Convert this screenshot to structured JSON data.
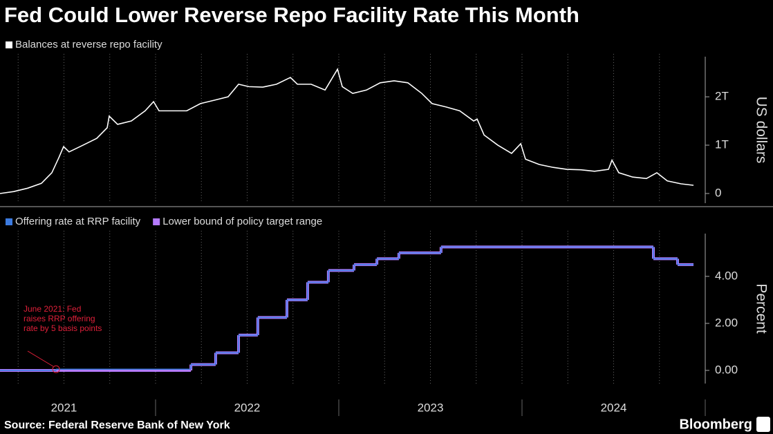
{
  "chart_data": [
    {
      "type": "line",
      "title": "Fed Could Lower Reverse Repo Facility Rate This Month",
      "ylabel": "US dollars",
      "xlim": [
        2021.151,
        2025.0
      ],
      "xgrid": [
        2021.25,
        2021.5,
        2021.75,
        2022,
        2022.25,
        2022.5,
        2022.75,
        2023,
        2023.25,
        2023.5,
        2023.75,
        2024,
        2024.25,
        2024.5,
        2024.75
      ],
      "ylim": [
        -200000000000.0,
        2830000000000.0
      ],
      "yticks": [
        0,
        {
          "value": 1000000000000.0,
          "label": "1T"
        },
        {
          "value": 2000000000000.0,
          "label": "2T"
        }
      ],
      "series": [
        {
          "name": "Balances at reverse repo facility",
          "color": "#ffffff",
          "x": [
            2021.151,
            2021.226,
            2021.302,
            2021.377,
            2021.434,
            2021.472,
            2021.498,
            2021.528,
            2021.604,
            2021.679,
            2021.736,
            2021.747,
            2021.793,
            2021.868,
            2021.943,
            2021.989,
            2022.019,
            2022.094,
            2022.17,
            2022.245,
            2022.321,
            2022.396,
            2022.453,
            2022.509,
            2022.585,
            2022.66,
            2022.736,
            2022.774,
            2022.849,
            2022.925,
            2022.993,
            2023.019,
            2023.076,
            2023.151,
            2023.226,
            2023.302,
            2023.377,
            2023.453,
            2023.509,
            2023.585,
            2023.66,
            2023.736,
            2023.755,
            2023.793,
            2023.868,
            2023.943,
            2023.993,
            2024.019,
            2024.094,
            2024.17,
            2024.245,
            2024.321,
            2024.396,
            2024.472,
            2024.491,
            2024.528,
            2024.604,
            2024.679,
            2024.736,
            2024.793,
            2024.868,
            2024.936
          ],
          "values": [
            0,
            40000000000.0,
            110000000000.0,
            210000000000.0,
            430000000000.0,
            740000000000.0,
            970000000000.0,
            860000000000.0,
            1000000000000.0,
            1140000000000.0,
            1360000000000.0,
            1600000000000.0,
            1430000000000.0,
            1500000000000.0,
            1710000000000.0,
            1900000000000.0,
            1710000000000.0,
            1710000000000.0,
            1710000000000.0,
            1860000000000.0,
            1930000000000.0,
            2000000000000.0,
            2260000000000.0,
            2210000000000.0,
            2200000000000.0,
            2260000000000.0,
            2400000000000.0,
            2260000000000.0,
            2260000000000.0,
            2140000000000.0,
            2570000000000.0,
            2210000000000.0,
            2070000000000.0,
            2140000000000.0,
            2290000000000.0,
            2330000000000.0,
            2290000000000.0,
            2070000000000.0,
            1860000000000.0,
            1790000000000.0,
            1710000000000.0,
            1500000000000.0,
            1540000000000.0,
            1210000000000.0,
            1000000000000.0,
            830000000000.0,
            1030000000000.0,
            710000000000.0,
            600000000000.0,
            540000000000.0,
            500000000000.0,
            490000000000.0,
            460000000000.0,
            500000000000.0,
            690000000000.0,
            430000000000.0,
            340000000000.0,
            310000000000.0,
            430000000000.0,
            260000000000.0,
            200000000000.0,
            170000000000.0
          ]
        }
      ]
    },
    {
      "type": "step",
      "ylabel": "Percent",
      "xlim": [
        2021.151,
        2025.0
      ],
      "xgrid": [
        2021.25,
        2021.5,
        2021.75,
        2022,
        2022.25,
        2022.5,
        2022.75,
        2023,
        2023.25,
        2023.5,
        2023.75,
        2024,
        2024.25,
        2024.5,
        2024.75
      ],
      "xticks": [
        {
          "value": 2021.5,
          "label": "2021"
        },
        {
          "value": 2022.5,
          "label": "2022"
        },
        {
          "value": 2023.5,
          "label": "2023"
        },
        {
          "value": 2024.5,
          "label": "2024"
        }
      ],
      "ylim": [
        -0.56,
        5.82
      ],
      "yticks": [
        {
          "value": 0,
          "label": "0.00"
        },
        {
          "value": 2,
          "label": "2.00"
        },
        {
          "value": 4,
          "label": "4.00"
        }
      ],
      "series": [
        {
          "name": "Lower bound of policy target range",
          "color": "#b57bff",
          "x": [
            2021.151,
            2022.193,
            2022.328,
            2022.453,
            2022.558,
            2022.717,
            2022.83,
            2022.943,
            2023.083,
            2023.208,
            2023.328,
            2023.558,
            2024.717,
            2024.849,
            2024.936
          ],
          "values": [
            0,
            0.25,
            0.75,
            1.5,
            2.25,
            3.0,
            3.75,
            4.25,
            4.5,
            4.75,
            5.0,
            5.25,
            4.75,
            4.5,
            4.5
          ]
        },
        {
          "name": "Offering rate at RRP facility",
          "color": "#3c7be0",
          "x": [
            2021.151,
            2021.457,
            2022.193,
            2022.328,
            2022.453,
            2022.558,
            2022.717,
            2022.83,
            2022.943,
            2023.083,
            2023.208,
            2023.328,
            2023.558,
            2024.717,
            2024.849,
            2024.936
          ],
          "values": [
            0,
            0.05,
            0.25,
            0.75,
            1.5,
            2.25,
            3.0,
            3.75,
            4.25,
            4.5,
            4.75,
            5.0,
            5.25,
            4.75,
            4.5,
            4.5
          ]
        }
      ],
      "annotation": {
        "text": [
          "June 2021: Fed",
          "raises RRP offering",
          "rate by 5 basis points"
        ],
        "x": 2021.457,
        "y": 0.05,
        "color": "#e0203a"
      },
      "source": "Source: Federal Reserve Bank of New York",
      "brand": "Bloomberg"
    }
  ]
}
